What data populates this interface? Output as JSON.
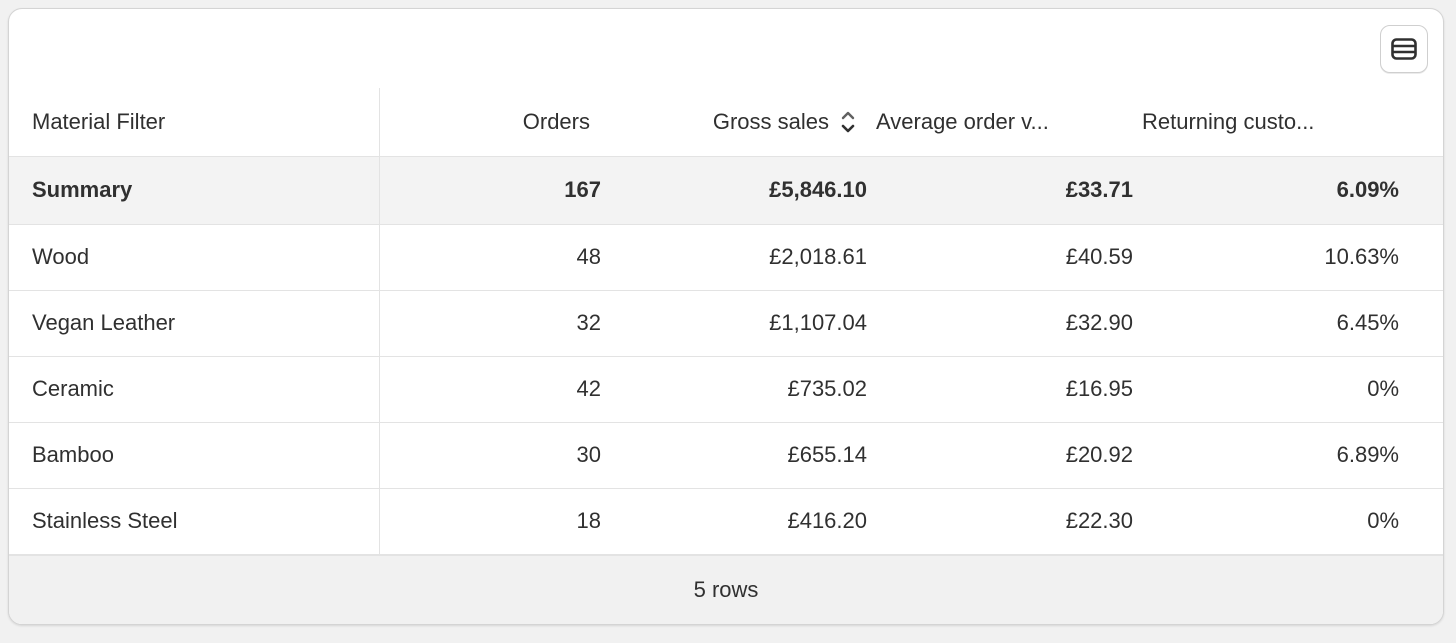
{
  "toolbar": {
    "view_icon": "table-rows-icon"
  },
  "table": {
    "columns": [
      {
        "label": "Material Filter"
      },
      {
        "label": "Orders"
      },
      {
        "label": "Gross sales",
        "sort_icon": "sort-up-down-icon"
      },
      {
        "label": "Average order v..."
      },
      {
        "label": "Returning custo..."
      }
    ],
    "summary": {
      "label": "Summary",
      "orders": "167",
      "gross_sales": "£5,846.10",
      "average_order_value": "£33.71",
      "returning_customers": "6.09%"
    },
    "rows": [
      {
        "material": "Wood",
        "orders": "48",
        "gross_sales": "£2,018.61",
        "average_order_value": "£40.59",
        "returning_customers": "10.63%"
      },
      {
        "material": "Vegan Leather",
        "orders": "32",
        "gross_sales": "£1,107.04",
        "average_order_value": "£32.90",
        "returning_customers": "6.45%"
      },
      {
        "material": "Ceramic",
        "orders": "42",
        "gross_sales": "£735.02",
        "average_order_value": "£16.95",
        "returning_customers": "0%"
      },
      {
        "material": "Bamboo",
        "orders": "30",
        "gross_sales": "£655.14",
        "average_order_value": "£20.92",
        "returning_customers": "6.89%"
      },
      {
        "material": "Stainless Steel",
        "orders": "18",
        "gross_sales": "£416.20",
        "average_order_value": "£22.30",
        "returning_customers": "0%"
      }
    ]
  },
  "footer": {
    "row_count": "5 rows"
  }
}
